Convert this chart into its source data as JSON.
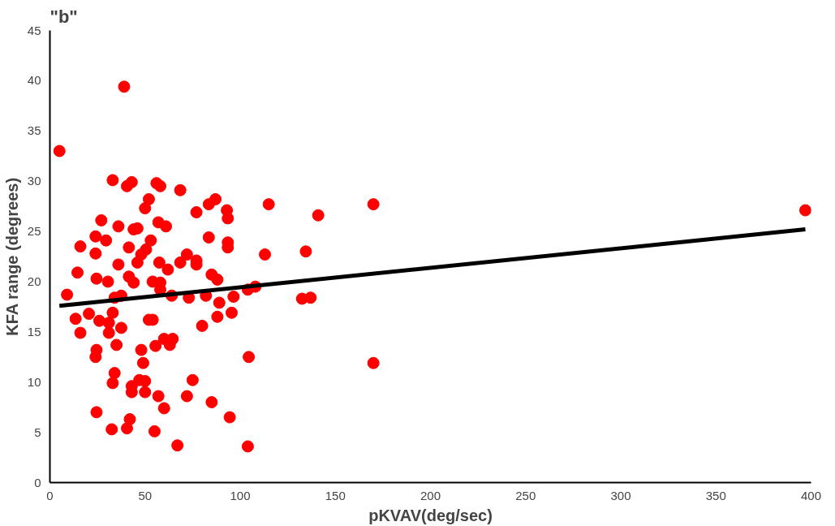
{
  "chart_data": {
    "type": "scatter",
    "title": "\"b\"",
    "xlabel": "pKVAV(deg/sec)",
    "ylabel": "KFA range (degrees)",
    "xlim": [
      0,
      400
    ],
    "xticks": [
      0,
      50,
      100,
      150,
      200,
      250,
      300,
      350,
      400
    ],
    "ylim": [
      0,
      45
    ],
    "yticks": [
      0,
      5,
      10,
      15,
      20,
      25,
      30,
      35,
      40,
      45
    ],
    "grid": false,
    "series": [
      {
        "color": "#ff0000",
        "marker": "circle",
        "x": [
          5,
          9,
          39,
          13.5,
          14.5,
          16,
          16,
          20.5,
          24,
          24.5,
          24,
          24,
          24.5,
          24.5,
          27,
          26,
          29.5,
          30.5,
          31,
          31,
          33,
          32.5,
          33,
          34,
          33,
          34,
          35,
          36,
          36,
          37.5,
          37.5,
          40.5,
          43,
          42,
          40.5,
          41.5,
          41.5,
          43,
          43,
          44,
          44,
          46,
          46,
          48,
          48,
          47,
          50,
          50,
          49,
          50,
          52,
          50.5,
          53,
          54,
          52,
          54,
          55,
          55.5,
          56,
          57,
          57.5,
          58,
          58,
          57,
          58,
          60,
          60,
          61,
          62,
          64,
          63,
          64.5,
          67,
          68.5,
          68.5,
          72,
          73,
          72,
          75,
          77,
          77,
          77,
          80,
          82,
          83.5,
          83.5,
          85,
          85,
          87,
          88,
          89,
          88,
          93,
          93.5,
          93.5,
          93.5,
          94.5,
          95.5,
          96.5,
          104,
          104.5,
          104,
          108,
          113,
          115,
          132.5,
          134.5,
          137,
          141,
          170,
          170,
          397
        ],
        "values": [
          33.0,
          18.7,
          39.4,
          16.3,
          20.9,
          23.5,
          14.9,
          16.8,
          12.5,
          13.2,
          24.5,
          22.8,
          20.3,
          7,
          26.1,
          16.1,
          24.1,
          20.0,
          15.9,
          14.9,
          30.1,
          5.3,
          9.9,
          10.9,
          16.9,
          18.4,
          13.7,
          25.5,
          21.7,
          15.4,
          18.6,
          29.5,
          29.9,
          6.3,
          5.4,
          23.4,
          20.5,
          9.6,
          9.0,
          19.9,
          25.2,
          25.3,
          21.9,
          22.7,
          13.2,
          10.2,
          10.1,
          9.0,
          11.9,
          27.3,
          28.2,
          23.2,
          24.1,
          20.0,
          16.2,
          16.2,
          5.1,
          13.6,
          29.8,
          25.9,
          21.9,
          19.9,
          19.2,
          8.6,
          29.5,
          7.4,
          14.3,
          25.5,
          21.2,
          18.6,
          13.7,
          14.3,
          3.7,
          29.1,
          21.9,
          22.7,
          18.4,
          8.6,
          10.2,
          26.9,
          22.1,
          21.7,
          15.6,
          18.6,
          27.7,
          24.4,
          8.0,
          20.7,
          28.2,
          20.2,
          17.9,
          16.5,
          27.1,
          26.3,
          23.9,
          23.4,
          6.5,
          16.9,
          18.5,
          3.6,
          12.5,
          19.2,
          19.5,
          22.7,
          27.7,
          18.3,
          23.0,
          18.4,
          26.6,
          27.7,
          11.9,
          27.1
        ]
      },
      {
        "type": "line",
        "color": "#000000",
        "x": [
          5,
          397
        ],
        "values": [
          17.6,
          25.2
        ],
        "line_style": "solid"
      }
    ]
  }
}
